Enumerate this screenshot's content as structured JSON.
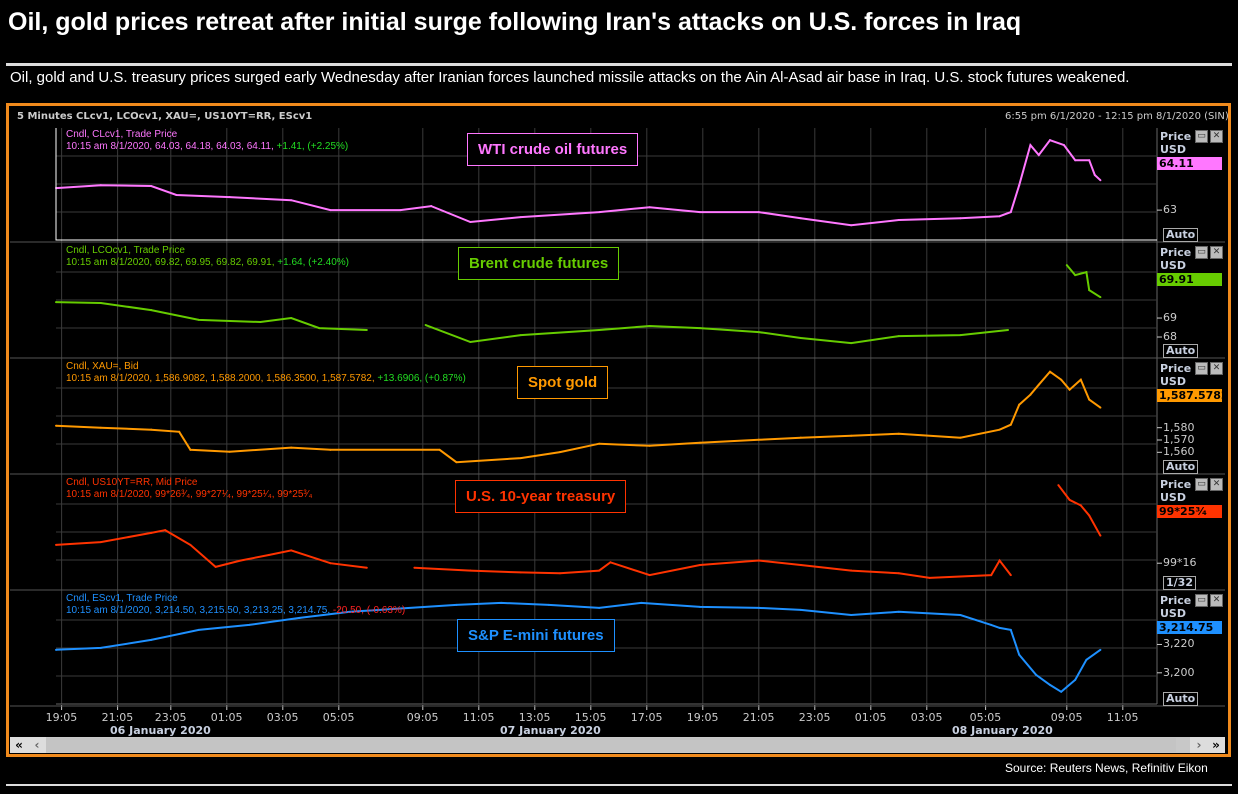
{
  "headline": "Oil, gold prices retreat after initial surge following Iran's attacks on U.S. forces in Iraq",
  "subtitle": "Oil, gold and U.S. treasury prices surged early Wednesday after Iranian forces launched missile attacks on the Ain Al-Asad air base in Iraq. U.S. stock futures weakened.",
  "chart_header": {
    "instruments": "5 Minutes CLcv1, LCOcv1, XAU=, US10YT=RR, EScv1",
    "range": "6:55 pm 6/1/2020 - 12:15 pm 8/1/2020 (SIN)"
  },
  "axis_unit_label": {
    "line1": "Price",
    "line2": "USD"
  },
  "x_axis": {
    "tick_labels": [
      "19:05",
      "21:05",
      "23:05",
      "01:05",
      "03:05",
      "05:05",
      "09:05",
      "11:05",
      "13:05",
      "15:05",
      "17:05",
      "19:05",
      "21:05",
      "23:05",
      "01:05",
      "03:05",
      "05:05",
      "09:05",
      "11:05"
    ],
    "tick_hours": [
      0.2,
      2.2,
      4.1,
      6.1,
      8.1,
      10.1,
      13.1,
      15.1,
      17.1,
      19.1,
      21.1,
      23.1,
      25.1,
      27.1,
      29.1,
      31.1,
      33.2,
      36.1,
      38.1
    ],
    "dates": [
      "06 January 2020",
      "07 January 2020",
      "08 January 2020"
    ],
    "xlim_hours": [
      0,
      39.3
    ]
  },
  "source": "Source: Reuters News, Refinitiv Eikon",
  "chart_data": [
    {
      "type": "line",
      "title": "WTI crude oil futures",
      "color": "#ff77ff",
      "legend1": "Cndl, CLcv1, Trade Price",
      "legend2": "10:15 am 8/1/2020, 64.03, 64.18, 64.03, 64.11, ",
      "change": "+1.41, (+2.25%)",
      "change_color": "#22dd22",
      "last": "64.11",
      "scale": "Auto",
      "ylim": [
        61.97,
        65.83
      ],
      "ticks": [
        {
          "v": 63,
          "label": "63"
        }
      ],
      "points": [
        [
          0,
          63.76
        ],
        [
          1.6,
          63.86
        ],
        [
          3.4,
          63.83
        ],
        [
          4.3,
          63.52
        ],
        [
          6.2,
          63.45
        ],
        [
          8.4,
          63.34
        ],
        [
          9.8,
          63.0
        ],
        [
          12.3,
          63.0
        ],
        [
          13.4,
          63.14
        ],
        [
          14.8,
          62.59
        ],
        [
          16.6,
          62.76
        ],
        [
          19.4,
          62.93
        ],
        [
          21.2,
          63.1
        ],
        [
          23,
          62.93
        ],
        [
          25.1,
          62.93
        ],
        [
          26.6,
          62.72
        ],
        [
          28.4,
          62.48
        ],
        [
          30.1,
          62.66
        ],
        [
          32.3,
          62.72
        ],
        [
          33.7,
          62.79
        ],
        [
          34.1,
          62.93
        ],
        [
          34.4,
          63.86
        ],
        [
          34.8,
          65.24
        ],
        [
          35.1,
          64.9
        ],
        [
          35.5,
          65.41
        ],
        [
          36,
          65.24
        ],
        [
          36.4,
          64.72
        ],
        [
          36.9,
          64.72
        ],
        [
          37.1,
          64.21
        ],
        [
          37.3,
          64.03
        ]
      ]
    },
    {
      "type": "line",
      "title": "Brent crude futures",
      "color": "#66cc00",
      "legend1": "Cndl, LCOcv1, Trade Price",
      "legend2": "10:15 am 8/1/2020, 69.82, 69.95, 69.82, 69.91, ",
      "change": "+1.64, (+2.40%)",
      "change_color": "#22dd22",
      "last": "69.91",
      "scale": "Auto",
      "ylim": [
        67.0,
        72.9
      ],
      "ticks": [
        {
          "v": 69,
          "label": "69"
        },
        {
          "v": 68,
          "label": "68"
        }
      ],
      "points": [
        [
          0,
          69.84
        ],
        [
          1.6,
          69.79
        ],
        [
          3.4,
          69.42
        ],
        [
          5.1,
          68.9
        ],
        [
          7.3,
          68.79
        ],
        [
          8.4,
          69.0
        ],
        [
          9.4,
          68.47
        ],
        [
          11.1,
          68.37
        ],
        null,
        [
          13.2,
          68.63
        ],
        [
          14.8,
          67.74
        ],
        [
          16.6,
          68.1
        ],
        [
          19.4,
          68.37
        ],
        [
          21.2,
          68.58
        ],
        [
          23,
          68.47
        ],
        [
          25.1,
          68.26
        ],
        [
          26.6,
          67.95
        ],
        [
          28.4,
          67.68
        ],
        [
          30.1,
          68.05
        ],
        [
          32.3,
          68.1
        ],
        [
          34,
          68.37
        ],
        null,
        [
          36.1,
          71.79
        ],
        [
          36.4,
          71.26
        ],
        [
          36.8,
          71.42
        ],
        [
          36.9,
          70.47
        ],
        [
          37.3,
          70.1
        ]
      ]
    },
    {
      "type": "line",
      "title": "Spot gold",
      "color": "#ff9900",
      "legend1": "Cndl, XAU=, Bid",
      "legend2": "10:15 am 8/1/2020, 1,586.9082, 1,588.2000, 1,586.3500, 1,587.5782, ",
      "change": "+13.6906, (+0.87%)",
      "change_color": "#22dd22",
      "last": "1,587.5782",
      "scale": "Auto",
      "ylim": [
        1544,
        1635
      ],
      "ticks": [
        {
          "v": 1580,
          "label": "1,580"
        },
        {
          "v": 1570,
          "label": "1,570"
        },
        {
          "v": 1560,
          "label": "1,560"
        }
      ],
      "points": [
        [
          0,
          1581.6
        ],
        [
          1.6,
          1580
        ],
        [
          3.4,
          1578.4
        ],
        [
          4.4,
          1576.7
        ],
        [
          4.8,
          1562
        ],
        [
          6.2,
          1560.5
        ],
        [
          8.4,
          1563.8
        ],
        [
          9.8,
          1562
        ],
        [
          13.7,
          1562
        ],
        [
          14.3,
          1552
        ],
        [
          16.6,
          1555.3
        ],
        [
          18,
          1560.2
        ],
        [
          19.4,
          1567
        ],
        [
          21.2,
          1565.3
        ],
        [
          23,
          1567.8
        ],
        [
          25.1,
          1570.2
        ],
        [
          26.6,
          1571.9
        ],
        [
          28.4,
          1573.5
        ],
        [
          30.1,
          1575.1
        ],
        [
          32.3,
          1571.9
        ],
        [
          33.7,
          1578.4
        ],
        [
          34.1,
          1582.4
        ],
        [
          34.4,
          1598.7
        ],
        [
          34.8,
          1606.8
        ],
        [
          35.1,
          1614.9
        ],
        [
          35.5,
          1625.5
        ],
        [
          35.9,
          1619
        ],
        [
          36.2,
          1610.9
        ],
        [
          36.6,
          1619
        ],
        [
          36.9,
          1602.8
        ],
        [
          37.3,
          1596.3
        ]
      ]
    },
    {
      "type": "line",
      "title": "U.S. 10-year treasury",
      "color": "#ff3300",
      "legend1": "Cndl, US10YT=RR, Mid Price",
      "legend2": "10:15 am 8/1/2020, 99*26³⁄₄, 99*27¹⁄₄, 99*25¹⁄₄, 99*25³⁄₄",
      "change": "",
      "change_color": "#ff3300",
      "last": "99*25³⁄₄",
      "scale": "1/32",
      "ylim": [
        99.23,
        100.45
      ],
      "ticks": [
        {
          "v": 99.5,
          "label": "99*16"
        }
      ],
      "points": [
        [
          0,
          99.7
        ],
        [
          1.6,
          99.73
        ],
        [
          3.4,
          99.83
        ],
        [
          3.9,
          99.86
        ],
        [
          4.8,
          99.7
        ],
        [
          5.7,
          99.46
        ],
        [
          6.6,
          99.53
        ],
        [
          7.6,
          99.59
        ],
        [
          8.4,
          99.64
        ],
        [
          9.8,
          99.5
        ],
        [
          11.1,
          99.45
        ],
        null,
        [
          12.8,
          99.45
        ],
        [
          14.8,
          99.42
        ],
        [
          16.6,
          99.4
        ],
        [
          18,
          99.39
        ],
        [
          19.4,
          99.42
        ],
        [
          19.8,
          99.51
        ],
        [
          21.2,
          99.37
        ],
        [
          23,
          99.48
        ],
        [
          25.1,
          99.53
        ],
        [
          26.6,
          99.48
        ],
        [
          28.4,
          99.42
        ],
        [
          30.1,
          99.39
        ],
        [
          31.2,
          99.34
        ],
        [
          33.4,
          99.37
        ],
        [
          33.7,
          99.53
        ],
        [
          34.1,
          99.37
        ],
        null,
        [
          35.8,
          100.35
        ],
        [
          36.2,
          100.19
        ],
        [
          36.6,
          100.13
        ],
        [
          36.9,
          100.02
        ],
        [
          37.3,
          99.8
        ]
      ]
    },
    {
      "type": "line",
      "title": "S&P E-mini futures",
      "color": "#1e90ff",
      "legend1": "Cndl, EScv1, Trade Price",
      "legend2": "10:15 am 8/1/2020, 3,214.50, 3,215.50, 3,213.25, 3,214.75, ",
      "change": "-20.50, (-0.63%)",
      "change_color": "#ff2222",
      "last": "3,214.75",
      "scale": "Auto",
      "ylim": [
        3178,
        3257
      ],
      "ticks": [
        {
          "v": 3200,
          "label": "3,200"
        },
        {
          "v": 3220,
          "label": "3,220"
        }
      ],
      "points": [
        [
          0,
          3216.2
        ],
        [
          1.6,
          3217.6
        ],
        [
          3.4,
          3223.2
        ],
        [
          5.1,
          3230.3
        ],
        [
          6.9,
          3233.8
        ],
        [
          8.7,
          3238.7
        ],
        [
          10.5,
          3243
        ],
        [
          14.3,
          3247.9
        ],
        [
          15.9,
          3249.3
        ],
        [
          17.6,
          3247.9
        ],
        [
          19.4,
          3245.8
        ],
        [
          20.9,
          3249.3
        ],
        [
          23,
          3246.5
        ],
        [
          25.1,
          3245.8
        ],
        [
          26.6,
          3244.4
        ],
        [
          28.4,
          3240.8
        ],
        [
          30.1,
          3243
        ],
        [
          32.3,
          3240.8
        ],
        [
          33.4,
          3233.8
        ],
        [
          33.7,
          3231.7
        ],
        [
          34.1,
          3230.3
        ],
        [
          34.4,
          3212.7
        ],
        [
          35,
          3198.6
        ],
        [
          35.5,
          3191.5
        ],
        [
          35.9,
          3186.6
        ],
        [
          36.4,
          3195
        ],
        [
          36.8,
          3209.2
        ],
        [
          37.3,
          3216.2
        ]
      ]
    }
  ]
}
